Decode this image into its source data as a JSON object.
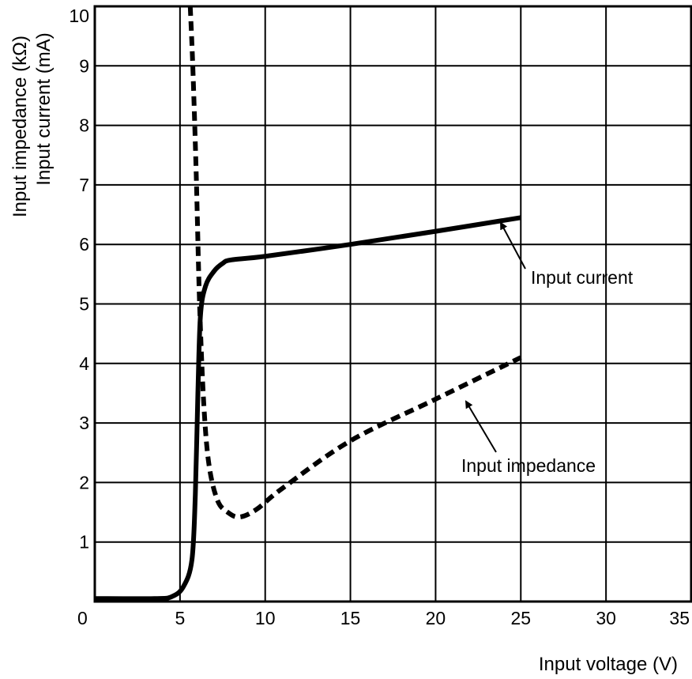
{
  "chart_data": {
    "type": "line",
    "title": "",
    "xlabel": "Input voltage (V)",
    "ylabel_lines": [
      "Input impedance (kΩ)",
      "Input current (mA)"
    ],
    "xlim": [
      0,
      35
    ],
    "ylim": [
      0,
      10
    ],
    "x_ticks": [
      "0",
      "5",
      "10",
      "15",
      "20",
      "25",
      "30",
      "35"
    ],
    "y_ticks": [
      "1",
      "2",
      "3",
      "4",
      "5",
      "6",
      "7",
      "8",
      "9",
      "10"
    ],
    "grid": true,
    "series": [
      {
        "name": "Input current",
        "style": "solid",
        "color": "#000000",
        "x": [
          0,
          3.5,
          4.5,
          5.2,
          5.7,
          5.9,
          6.05,
          6.2,
          6.5,
          7.0,
          7.5,
          8.0,
          10,
          15,
          20,
          25
        ],
        "y": [
          0.05,
          0.05,
          0.08,
          0.25,
          0.7,
          1.8,
          3.5,
          4.8,
          5.3,
          5.55,
          5.68,
          5.74,
          5.8,
          6.0,
          6.22,
          6.45
        ]
      },
      {
        "name": "Input impedance",
        "style": "dashed",
        "color": "#000000",
        "x": [
          5.6,
          5.75,
          5.95,
          6.15,
          6.4,
          6.7,
          7.2,
          7.8,
          8.5,
          9.5,
          11,
          15,
          20,
          25
        ],
        "y": [
          10.0,
          9.0,
          7.2,
          5.0,
          3.3,
          2.3,
          1.7,
          1.5,
          1.42,
          1.55,
          1.9,
          2.7,
          3.4,
          4.1
        ]
      }
    ],
    "annotations": [
      {
        "text": "Input current",
        "target_series": "Input current"
      },
      {
        "text": "Input impedance",
        "target_series": "Input impedance"
      }
    ]
  }
}
